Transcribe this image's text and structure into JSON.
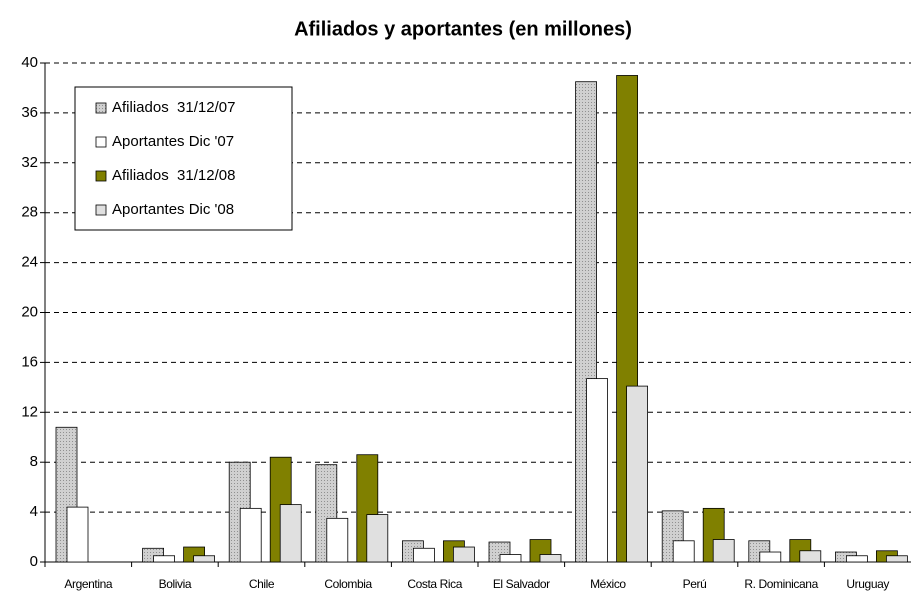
{
  "chart_data": {
    "type": "bar",
    "title": "Afiliados y aportantes (en millones)",
    "categories": [
      "Argentina",
      "Bolivia",
      "Chile",
      "Colombia",
      "Costa Rica",
      "El Salvador",
      "México",
      "Perú",
      "R. Dominicana",
      "Uruguay"
    ],
    "series": [
      {
        "name": "Afiliados  31/12/07",
        "color": "#c0c0c0",
        "values": [
          10.8,
          1.1,
          8.0,
          7.8,
          1.7,
          1.6,
          38.5,
          4.1,
          1.7,
          0.8
        ]
      },
      {
        "name": "Aportantes Dic '07",
        "color": "#ffffff",
        "values": [
          4.4,
          0.5,
          4.3,
          3.5,
          1.1,
          0.6,
          14.7,
          1.7,
          0.8,
          0.5
        ]
      },
      {
        "name": "Afiliados  31/12/08",
        "color": "#808000",
        "values": [
          null,
          1.2,
          8.4,
          8.6,
          1.7,
          1.8,
          39.0,
          4.3,
          1.8,
          0.9
        ]
      },
      {
        "name": "Aportantes Dic '08",
        "color": "#e0e0e0",
        "values": [
          null,
          0.5,
          4.6,
          3.8,
          1.2,
          0.6,
          14.1,
          1.8,
          0.9,
          0.5
        ]
      }
    ],
    "ylim": [
      0,
      40
    ],
    "yticks": [
      0,
      4,
      8,
      12,
      16,
      20,
      24,
      28,
      32,
      36,
      40
    ],
    "grid": true,
    "legend": "upper left"
  }
}
